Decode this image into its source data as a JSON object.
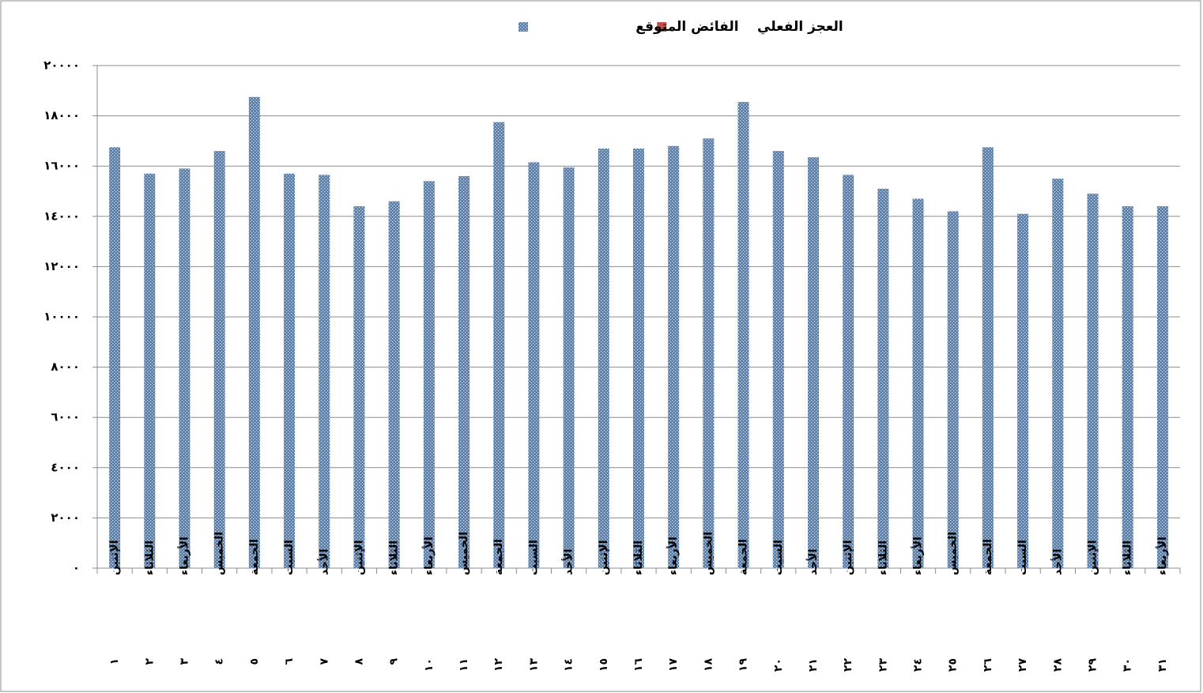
{
  "chart_data": {
    "type": "bar",
    "categories": [
      "الإثنين",
      "الثلاثاء",
      "الأربعاء",
      "الخميس",
      "الجمعة",
      "السبت",
      "الأحد",
      "الإثنين",
      "الثلاثاء",
      "الأربعاء",
      "الخميس",
      "الجمعة",
      "السبت",
      "الأحد",
      "الإثنين",
      "الثلاثاء",
      "الأربعاء",
      "الخميس",
      "الجمعة",
      "السبت",
      "الأحد",
      "الإثنين",
      "الثلاثاء",
      "الأربعاء",
      "الخميس",
      "الجمعة",
      "السبت",
      "الأحد",
      "الإثنين",
      "الثلاثاء",
      "الأربعاء"
    ],
    "category_numbers": [
      "١",
      "٢",
      "٣",
      "٤",
      "٥",
      "٦",
      "٧",
      "٨",
      "٩",
      "١٠",
      "١١",
      "١٢",
      "١٣",
      "١٤",
      "١٥",
      "١٦",
      "١٧",
      "١٨",
      "١٩",
      "٢٠",
      "٢١",
      "٢٢",
      "٢٣",
      "٢٤",
      "٢٥",
      "٢٦",
      "٢٧",
      "٢٨",
      "٢٩",
      "٣٠",
      "٣١"
    ],
    "series": [
      {
        "name": "العجز الفعلي",
        "color": "#c0504d",
        "values": [
          null,
          null,
          null,
          null,
          null,
          null,
          null,
          null,
          null,
          null,
          null,
          null,
          null,
          null,
          null,
          null,
          null,
          null,
          null,
          null,
          null,
          null,
          null,
          null,
          null,
          null,
          null,
          null,
          null,
          null,
          null
        ]
      },
      {
        "name": "الفائض المتوقع",
        "color": "#4f81bd",
        "values": [
          16750,
          15700,
          15900,
          16600,
          18750,
          15700,
          15650,
          14400,
          14600,
          15400,
          15600,
          17750,
          16150,
          15950,
          16700,
          16700,
          16800,
          17100,
          18550,
          16600,
          16350,
          15650,
          15100,
          14700,
          14200,
          16750,
          14100,
          15500,
          14900,
          14400,
          14400
        ]
      }
    ],
    "ylim": [
      0,
      20000
    ],
    "yticks": [
      {
        "value": 0,
        "label": "٠"
      },
      {
        "value": 2000,
        "label": "٢٠٠٠"
      },
      {
        "value": 4000,
        "label": "٤٠٠٠"
      },
      {
        "value": 6000,
        "label": "٦٠٠٠"
      },
      {
        "value": 8000,
        "label": "٨٠٠٠"
      },
      {
        "value": 10000,
        "label": "١٠٠٠٠"
      },
      {
        "value": 12000,
        "label": "١٢٠٠٠"
      },
      {
        "value": 14000,
        "label": "١٤٠٠٠"
      },
      {
        "value": 16000,
        "label": "١٦٠٠٠"
      },
      {
        "value": 18000,
        "label": "١٨٠٠٠"
      },
      {
        "value": 20000,
        "label": "٢٠٠٠٠"
      }
    ],
    "grid": true
  }
}
